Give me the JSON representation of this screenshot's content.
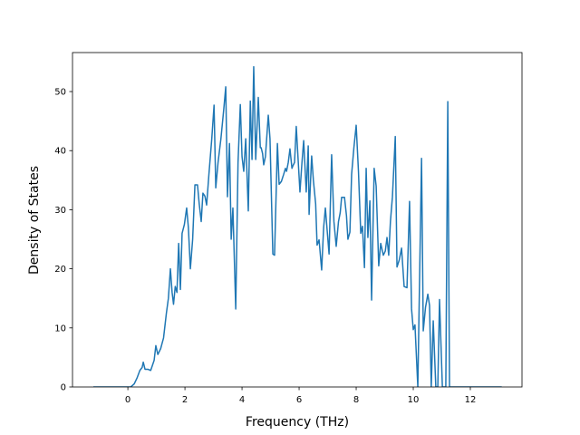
{
  "chart_data": {
    "type": "line",
    "xlabel": "Frequency (THz)",
    "ylabel": "Density of States",
    "color": "#1f77b4",
    "xlim": [
      -1.94,
      13.81
    ],
    "ylim": [
      0,
      56.6
    ],
    "xticks": [
      0,
      2,
      4,
      6,
      8,
      10,
      12
    ],
    "yticks": [
      0,
      10,
      20,
      30,
      40,
      50
    ],
    "x": [
      -1.21,
      0.1,
      0.22,
      0.32,
      0.42,
      0.5,
      0.54,
      0.6,
      0.7,
      0.8,
      0.92,
      0.98,
      1.05,
      1.15,
      1.25,
      1.35,
      1.42,
      1.49,
      1.55,
      1.6,
      1.66,
      1.72,
      1.78,
      1.84,
      1.9,
      1.98,
      2.06,
      2.12,
      2.19,
      2.27,
      2.35,
      2.44,
      2.5,
      2.57,
      2.63,
      2.7,
      2.76,
      2.84,
      2.94,
      3.02,
      3.08,
      3.16,
      3.26,
      3.36,
      3.43,
      3.49,
      3.56,
      3.62,
      3.68,
      3.78,
      3.86,
      3.94,
      4.0,
      4.06,
      4.13,
      4.22,
      4.29,
      4.35,
      4.41,
      4.48,
      4.57,
      4.64,
      4.67,
      4.72,
      4.76,
      4.82,
      4.92,
      4.98,
      5.08,
      5.14,
      5.24,
      5.3,
      5.38,
      5.46,
      5.52,
      5.56,
      5.62,
      5.68,
      5.75,
      5.78,
      5.84,
      5.9,
      6.03,
      6.1,
      6.16,
      6.25,
      6.32,
      6.35,
      6.44,
      6.5,
      6.58,
      6.63,
      6.7,
      6.79,
      6.86,
      6.92,
      7.05,
      7.14,
      7.22,
      7.3,
      7.38,
      7.44,
      7.49,
      7.59,
      7.66,
      7.71,
      7.78,
      7.84,
      7.92,
      8.0,
      8.08,
      8.16,
      8.22,
      8.29,
      8.35,
      8.41,
      8.48,
      8.54,
      8.63,
      8.7,
      8.79,
      8.86,
      8.95,
      9.02,
      9.08,
      9.14,
      9.2,
      9.27,
      9.37,
      9.43,
      9.51,
      9.59,
      9.68,
      9.78,
      9.87,
      9.94,
      10.0,
      10.06,
      10.16,
      10.29,
      10.35,
      10.43,
      10.51,
      10.57,
      10.63,
      10.7,
      10.79,
      10.86,
      10.92,
      11.02,
      11.14,
      11.21,
      11.27,
      13.1
    ],
    "values": [
      0,
      0,
      0.5,
      1.5,
      2.8,
      3.3,
      4.2,
      3.0,
      3.0,
      2.8,
      4.5,
      7,
      5.5,
      6.5,
      8.3,
      12.5,
      15,
      20,
      16,
      14,
      17,
      16,
      24.3,
      16.5,
      26,
      27.5,
      30.3,
      27,
      20,
      25,
      34.2,
      34.2,
      31,
      28,
      32.8,
      32.3,
      30.8,
      36,
      42,
      47.7,
      33.7,
      38,
      42,
      47,
      50.8,
      32.2,
      41.2,
      25,
      30.3,
      13.2,
      38,
      47.8,
      39,
      36.5,
      42,
      29.8,
      48.4,
      38.5,
      54.2,
      38.5,
      49,
      40.5,
      40.5,
      39.5,
      37.6,
      39,
      46,
      42,
      22.5,
      22.3,
      41.2,
      34.3,
      34.8,
      36,
      37,
      36.5,
      38,
      40.3,
      37,
      37.4,
      38,
      44.1,
      33,
      38,
      41.7,
      33,
      40.8,
      29.2,
      39.1,
      35,
      31,
      24,
      24.9,
      19.8,
      27,
      30.3,
      22.5,
      39.3,
      28,
      23.8,
      28,
      29.5,
      32.1,
      32.1,
      29,
      25,
      26.2,
      36,
      40.5,
      44.3,
      36.5,
      26,
      27.2,
      20.2,
      37,
      25.3,
      31.5,
      14.7,
      37,
      34,
      20.5,
      24.3,
      22.3,
      23,
      25.3,
      22.3,
      28,
      32.2,
      42.4,
      20.3,
      21.5,
      23.5,
      17,
      16.8,
      31.4,
      13.2,
      9.7,
      10.5,
      0,
      38.7,
      9.5,
      13.5,
      15.7,
      13.8,
      0,
      11.2,
      0,
      0,
      14.8,
      0,
      0,
      48.3,
      0,
      0
    ]
  }
}
